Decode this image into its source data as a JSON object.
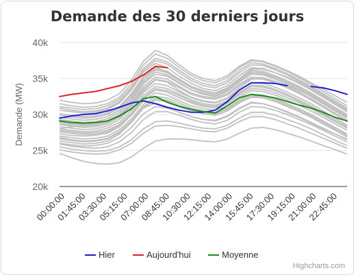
{
  "chart_data": {
    "type": "line",
    "title": "Demande des 30 derniers jours",
    "ylabel": "Demande (MW)",
    "ylim": [
      20000,
      40000
    ],
    "yticks": [
      20000,
      25000,
      30000,
      35000,
      40000
    ],
    "ytick_labels": [
      "20k",
      "25k",
      "30k",
      "35k",
      "40k"
    ],
    "x_hours": [
      0,
      1,
      2,
      3,
      4,
      5,
      6,
      7,
      8,
      9,
      10,
      11,
      12,
      13,
      14,
      15,
      16,
      17,
      18,
      19,
      20,
      21,
      22,
      23,
      24
    ],
    "xtick_labels": [
      "00:00:00",
      "01:45:00",
      "03:30:00",
      "05:15:00",
      "07:00:00",
      "08:45:00",
      "10:30:00",
      "12:15:00",
      "14:00:00",
      "15:45:00",
      "17:30:00",
      "19:15:00",
      "21:00:00",
      "22:45:00"
    ],
    "series": [
      {
        "name": "Hier",
        "color": "#1f1fd1",
        "values": [
          29500,
          29800,
          30000,
          30100,
          30500,
          31000,
          31600,
          31900,
          31500,
          31000,
          30600,
          30300,
          30300,
          30600,
          31800,
          33400,
          34400,
          34400,
          34300,
          34000,
          null,
          33900,
          33700,
          33300,
          32800
        ]
      },
      {
        "name": "Aujourd'hui",
        "color": "#e02020",
        "values": [
          32500,
          32800,
          33000,
          33200,
          33600,
          34000,
          34600,
          35500,
          36700,
          36500,
          null,
          null,
          null,
          null,
          null,
          null,
          null,
          null,
          null,
          null,
          null,
          null,
          null,
          null,
          null
        ]
      },
      {
        "name": "Moyenne",
        "color": "#1a8a1a",
        "values": [
          29100,
          28900,
          28800,
          28900,
          29100,
          29800,
          30800,
          32200,
          32500,
          31700,
          31100,
          30700,
          30400,
          30200,
          31200,
          32300,
          32800,
          32600,
          32300,
          31800,
          31300,
          30900,
          30300,
          29600,
          29100
        ]
      }
    ],
    "background_days": [
      [
        28000,
        28300,
        28500,
        28600,
        29000,
        29800,
        31300,
        33300,
        34800,
        34500,
        33300,
        32400,
        31900,
        31700,
        32300,
        33700,
        34900,
        35000,
        34600,
        34000,
        33300,
        32600,
        31600,
        30600,
        29600
      ],
      [
        26300,
        26100,
        25900,
        26000,
        26300,
        27300,
        28900,
        30900,
        31600,
        31000,
        30300,
        29700,
        29300,
        29200,
        29800,
        30900,
        31700,
        31500,
        31000,
        30300,
        29600,
        28800,
        28000,
        27300,
        26600
      ],
      [
        30100,
        29900,
        29700,
        29800,
        30200,
        31100,
        32900,
        35300,
        36600,
        35900,
        34900,
        33900,
        33300,
        33000,
        33600,
        35000,
        36300,
        36300,
        35800,
        35200,
        34400,
        33500,
        32500,
        31500,
        30500
      ],
      [
        24600,
        24000,
        23500,
        23200,
        23100,
        23300,
        24100,
        25300,
        26300,
        26600,
        26600,
        26500,
        26300,
        26200,
        26600,
        27400,
        28100,
        28200,
        27900,
        27400,
        26900,
        26300,
        25700,
        25100,
        24500
      ],
      [
        29000,
        28800,
        28600,
        28700,
        29100,
        30000,
        31800,
        34300,
        35600,
        35300,
        34300,
        33400,
        32900,
        32600,
        33300,
        34600,
        35700,
        35600,
        35100,
        34400,
        33600,
        32700,
        31700,
        30700,
        29700
      ],
      [
        27300,
        27100,
        27000,
        27100,
        27400,
        28300,
        29900,
        31900,
        33000,
        32700,
        31900,
        31200,
        30800,
        30600,
        31200,
        32400,
        33300,
        33200,
        32700,
        32000,
        31300,
        30500,
        29600,
        28700,
        27800
      ],
      [
        31100,
        30900,
        30700,
        30800,
        31200,
        32100,
        33900,
        36400,
        37800,
        37300,
        36100,
        35000,
        34300,
        34000,
        34700,
        36100,
        37200,
        37000,
        36400,
        35700,
        34800,
        33900,
        32900,
        31900,
        30900
      ],
      [
        25900,
        25600,
        25400,
        25300,
        25500,
        26200,
        27500,
        29300,
        30400,
        30400,
        29900,
        29300,
        28900,
        28700,
        29200,
        30300,
        31100,
        31000,
        30600,
        30000,
        29300,
        28600,
        27800,
        27000,
        26200
      ],
      [
        28600,
        28400,
        28200,
        28300,
        28700,
        29600,
        31300,
        33600,
        34900,
        34600,
        33700,
        32800,
        32300,
        32100,
        32700,
        34000,
        35000,
        34900,
        34400,
        33700,
        32900,
        32000,
        31000,
        30000,
        29000
      ],
      [
        30600,
        30400,
        30200,
        30300,
        30700,
        31600,
        33400,
        35900,
        37100,
        36500,
        35300,
        34300,
        33600,
        33300,
        34000,
        35400,
        36500,
        36400,
        35800,
        35100,
        34300,
        33400,
        32400,
        31400,
        30400
      ],
      [
        27600,
        27400,
        27200,
        27300,
        27600,
        28500,
        30100,
        32200,
        33400,
        33100,
        32300,
        31600,
        31100,
        30900,
        31500,
        32700,
        33600,
        33500,
        33000,
        32300,
        31600,
        30800,
        29900,
        29000,
        28100
      ],
      [
        26600,
        26400,
        26200,
        26300,
        26600,
        27500,
        29000,
        31000,
        32000,
        31800,
        31100,
        30500,
        30100,
        29900,
        30500,
        31600,
        32400,
        32300,
        31800,
        31100,
        30400,
        29600,
        28700,
        27800,
        26900
      ],
      [
        29600,
        29400,
        29200,
        29300,
        29700,
        30600,
        32400,
        34800,
        36200,
        35800,
        34700,
        33700,
        33100,
        32800,
        33500,
        34800,
        35900,
        35800,
        35200,
        34500,
        33700,
        32800,
        31800,
        30800,
        29800
      ],
      [
        28300,
        28100,
        27900,
        28000,
        28400,
        29300,
        31000,
        33100,
        34300,
        34000,
        33100,
        32300,
        31800,
        31600,
        32200,
        33400,
        34400,
        34300,
        33800,
        33100,
        32300,
        31500,
        30500,
        29500,
        28500
      ],
      [
        26000,
        25800,
        25600,
        25700,
        26000,
        26800,
        28200,
        30100,
        31100,
        30900,
        30300,
        29700,
        29300,
        29100,
        29700,
        30800,
        31600,
        31500,
        31000,
        30400,
        29700,
        28900,
        28100,
        27300,
        26500
      ],
      [
        30900,
        30600,
        30400,
        30500,
        30900,
        31800,
        33600,
        36100,
        37500,
        37000,
        35800,
        34700,
        34000,
        33700,
        34400,
        35800,
        36900,
        36800,
        36200,
        35500,
        34600,
        33700,
        32700,
        31700,
        30700
      ],
      [
        27000,
        26800,
        26600,
        26700,
        27000,
        27900,
        29400,
        31400,
        32500,
        32300,
        31600,
        30900,
        30500,
        30300,
        30900,
        32000,
        32800,
        32700,
        32200,
        31500,
        30800,
        30000,
        29100,
        28200,
        27300
      ],
      [
        29300,
        29100,
        28900,
        29000,
        29400,
        30300,
        32100,
        34500,
        35900,
        35500,
        34400,
        33400,
        32800,
        32500,
        33200,
        34500,
        35600,
        35500,
        34900,
        34200,
        33400,
        32500,
        31500,
        30500,
        29500
      ],
      [
        25500,
        25200,
        25000,
        24900,
        25000,
        25500,
        26500,
        28000,
        29000,
        29100,
        28800,
        28400,
        28100,
        28000,
        28500,
        29500,
        30300,
        30300,
        29900,
        29300,
        28700,
        28000,
        27200,
        26400,
        25700
      ],
      [
        31500,
        31200,
        31000,
        31100,
        31500,
        32400,
        34300,
        36900,
        38400,
        37800,
        36500,
        35400,
        34700,
        34400,
        35100,
        36500,
        37500,
        37300,
        36700,
        36000,
        35100,
        34200,
        33200,
        32200,
        31200
      ],
      [
        28000,
        27800,
        27600,
        27700,
        28100,
        28900,
        30600,
        32700,
        33900,
        33600,
        32800,
        32000,
        31500,
        31300,
        31900,
        33100,
        34100,
        34000,
        33500,
        32800,
        32000,
        31200,
        30200,
        29200,
        28200
      ],
      [
        27800,
        27600,
        27400,
        27500,
        27800,
        28600,
        30200,
        32400,
        33600,
        33300,
        32600,
        31800,
        31300,
        31100,
        31700,
        32900,
        33900,
        33800,
        33300,
        32600,
        31800,
        31000,
        30100,
        29200,
        28300
      ],
      [
        32000,
        31700,
        31500,
        31600,
        32000,
        32900,
        34800,
        37400,
        38900,
        38200,
        36900,
        35700,
        35000,
        34700,
        35400,
        36700,
        37600,
        37400,
        36800,
        36100,
        35300,
        34400,
        33500,
        32600,
        31700
      ],
      [
        25100,
        24800,
        24600,
        24500,
        24600,
        25100,
        26000,
        27400,
        28400,
        28500,
        28300,
        28000,
        27700,
        27600,
        28100,
        29000,
        29700,
        29700,
        29300,
        28700,
        28100,
        27400,
        26700,
        26000,
        25300
      ],
      [
        29900,
        29700,
        29500,
        29600,
        30000,
        30900,
        32700,
        35100,
        36400,
        36000,
        34900,
        33900,
        33300,
        33000,
        33700,
        35000,
        36100,
        36000,
        35400,
        34700,
        33900,
        33000,
        32000,
        31000,
        30000
      ],
      [
        26800,
        26500,
        26300,
        26400,
        26700,
        27600,
        29100,
        31100,
        32200,
        32000,
        31300,
        30700,
        30300,
        30100,
        30700,
        31800,
        32600,
        32500,
        32000,
        31300,
        30600,
        29800,
        28900,
        28000,
        27100
      ],
      [
        28800,
        28600,
        28400,
        28500,
        28900,
        29800,
        31500,
        33900,
        35200,
        34900,
        33900,
        33000,
        32500,
        32300,
        32900,
        34200,
        35200,
        35100,
        34600,
        33900,
        33100,
        32200,
        31200,
        30200,
        29200
      ]
    ],
    "background_color": "#c0c0c0",
    "grid": true,
    "legend_position": "bottom",
    "credit": "Highcharts.com"
  }
}
